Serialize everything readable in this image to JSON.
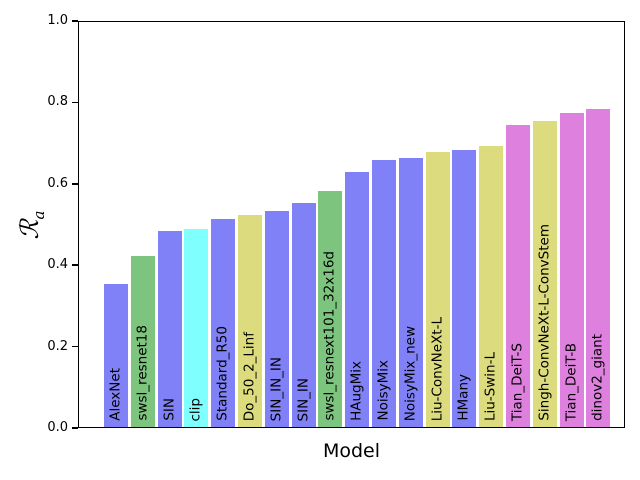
{
  "chart_data": {
    "type": "bar",
    "title": "",
    "xlabel": "Model",
    "ylabel": "R_a",
    "ylabel_symbol": "ℛ",
    "ylabel_subscript": "a",
    "ylim": [
      0.0,
      1.0
    ],
    "yticks": [
      0.0,
      0.2,
      0.4,
      0.6,
      0.8,
      1.0
    ],
    "ytick_labels": [
      "0.0",
      "0.2",
      "0.4",
      "0.6",
      "0.8",
      "1.0"
    ],
    "grid": false,
    "bar_label_rotation": 90,
    "legend": "none",
    "categories": [
      "AlexNet",
      "swsl_resnet18",
      "SIN",
      "clip",
      "Standard_R50",
      "Do_50_2_Linf",
      "SIN_IN_IN",
      "SIN_IN",
      "swsl_resnext101_32x16d",
      "HAugMix",
      "NoisyMix",
      "NoisyMix_new",
      "Liu-ConvNeXt-L",
      "HMany",
      "Liu-Swin-L",
      "Tian_DeiT-S",
      "Singh-ConvNeXt-L-ConvStem",
      "Tian_DeiT-B",
      "dinov2_giant"
    ],
    "values": [
      0.355,
      0.425,
      0.485,
      0.49,
      0.515,
      0.525,
      0.535,
      0.555,
      0.585,
      0.63,
      0.66,
      0.665,
      0.68,
      0.685,
      0.695,
      0.745,
      0.755,
      0.775,
      0.785
    ],
    "bar_colors": [
      "#8181f7",
      "#7dc47e",
      "#8181f7",
      "#80ffff",
      "#8181f7",
      "#dcdc7e",
      "#8181f7",
      "#8181f7",
      "#7dc47e",
      "#8181f7",
      "#8181f7",
      "#8181f7",
      "#dcdc7e",
      "#8181f7",
      "#dcdc7e",
      "#de81de",
      "#dcdc7e",
      "#de81de",
      "#de81de"
    ],
    "palette": {
      "blue": "#8181f7",
      "green": "#7dc47e",
      "cyan": "#80ffff",
      "yellow": "#dcdc7e",
      "pink": "#de81de"
    }
  }
}
